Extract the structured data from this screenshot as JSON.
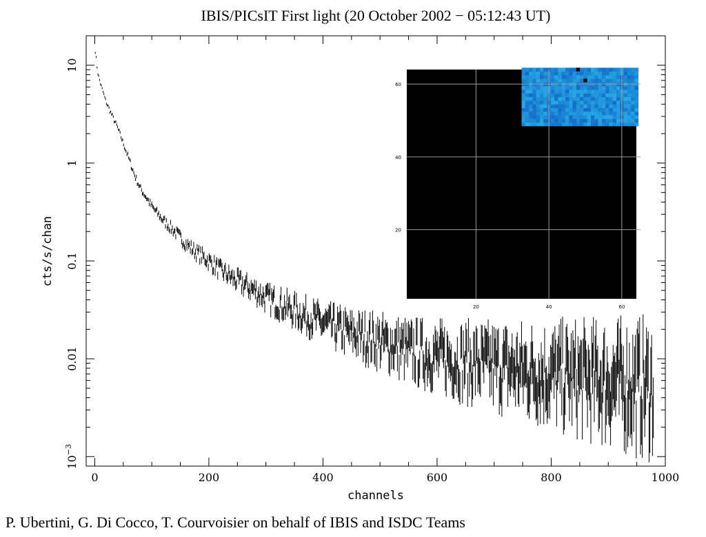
{
  "chart_data": [
    {
      "type": "scatter",
      "title": "IBIS/PICsIT First light (20 October 2002 − 05:12:43 UT)",
      "xlabel": "channels",
      "ylabel": "cts/s/chan",
      "xlim": [
        -15,
        1000
      ],
      "ylim": [
        0.0008,
        20
      ],
      "yscale": "log",
      "xticks": [
        0,
        200,
        400,
        600,
        800,
        1000
      ],
      "xtick_labels": [
        "0",
        "200",
        "400",
        "600",
        "800",
        "1000"
      ],
      "yticks": [
        0.001,
        0.01,
        0.1,
        1,
        10
      ],
      "ytick_labels": [
        "10^-3",
        "0.01",
        "0.1",
        "1",
        "10"
      ],
      "grid": false,
      "series": [
        {
          "values_note": "",
          "x": [
            1,
            3,
            5,
            10,
            15,
            20,
            30,
            40,
            50,
            60,
            70,
            80,
            90,
            100,
            120,
            140,
            160,
            180,
            200,
            220,
            250,
            280,
            300,
            330,
            360,
            400,
            450,
            500,
            550,
            600,
            650,
            700,
            750,
            800,
            850,
            900,
            950,
            980
          ],
          "y": [
            14,
            11,
            8.5,
            6.5,
            5.2,
            4.2,
            3.1,
            2.3,
            1.6,
            1.1,
            0.75,
            0.55,
            0.45,
            0.36,
            0.26,
            0.2,
            0.15,
            0.12,
            0.1,
            0.08,
            0.062,
            0.05,
            0.042,
            0.035,
            0.029,
            0.023,
            0.018,
            0.015,
            0.012,
            0.0105,
            0.0092,
            0.0083,
            0.0075,
            0.0068,
            0.0062,
            0.0057,
            0.0052,
            0.005
          ]
        }
      ]
    },
    {
      "type": "heatmap",
      "xticks": [
        20,
        40,
        60
      ],
      "yticks": [
        20,
        40,
        60
      ],
      "xlim": [
        1,
        64
      ],
      "ylim": [
        1,
        64
      ],
      "active_region": {
        "x": [
          33,
          64
        ],
        "y": [
          49,
          64
        ]
      },
      "colors": {
        "background": "#000000",
        "active": "#2f7fe0",
        "grid": "#9a9a9a"
      }
    }
  ],
  "credits": "P. Ubertini, G. Di Cocco, T. Courvoisier on behalf of IBIS and ISDC Teams"
}
